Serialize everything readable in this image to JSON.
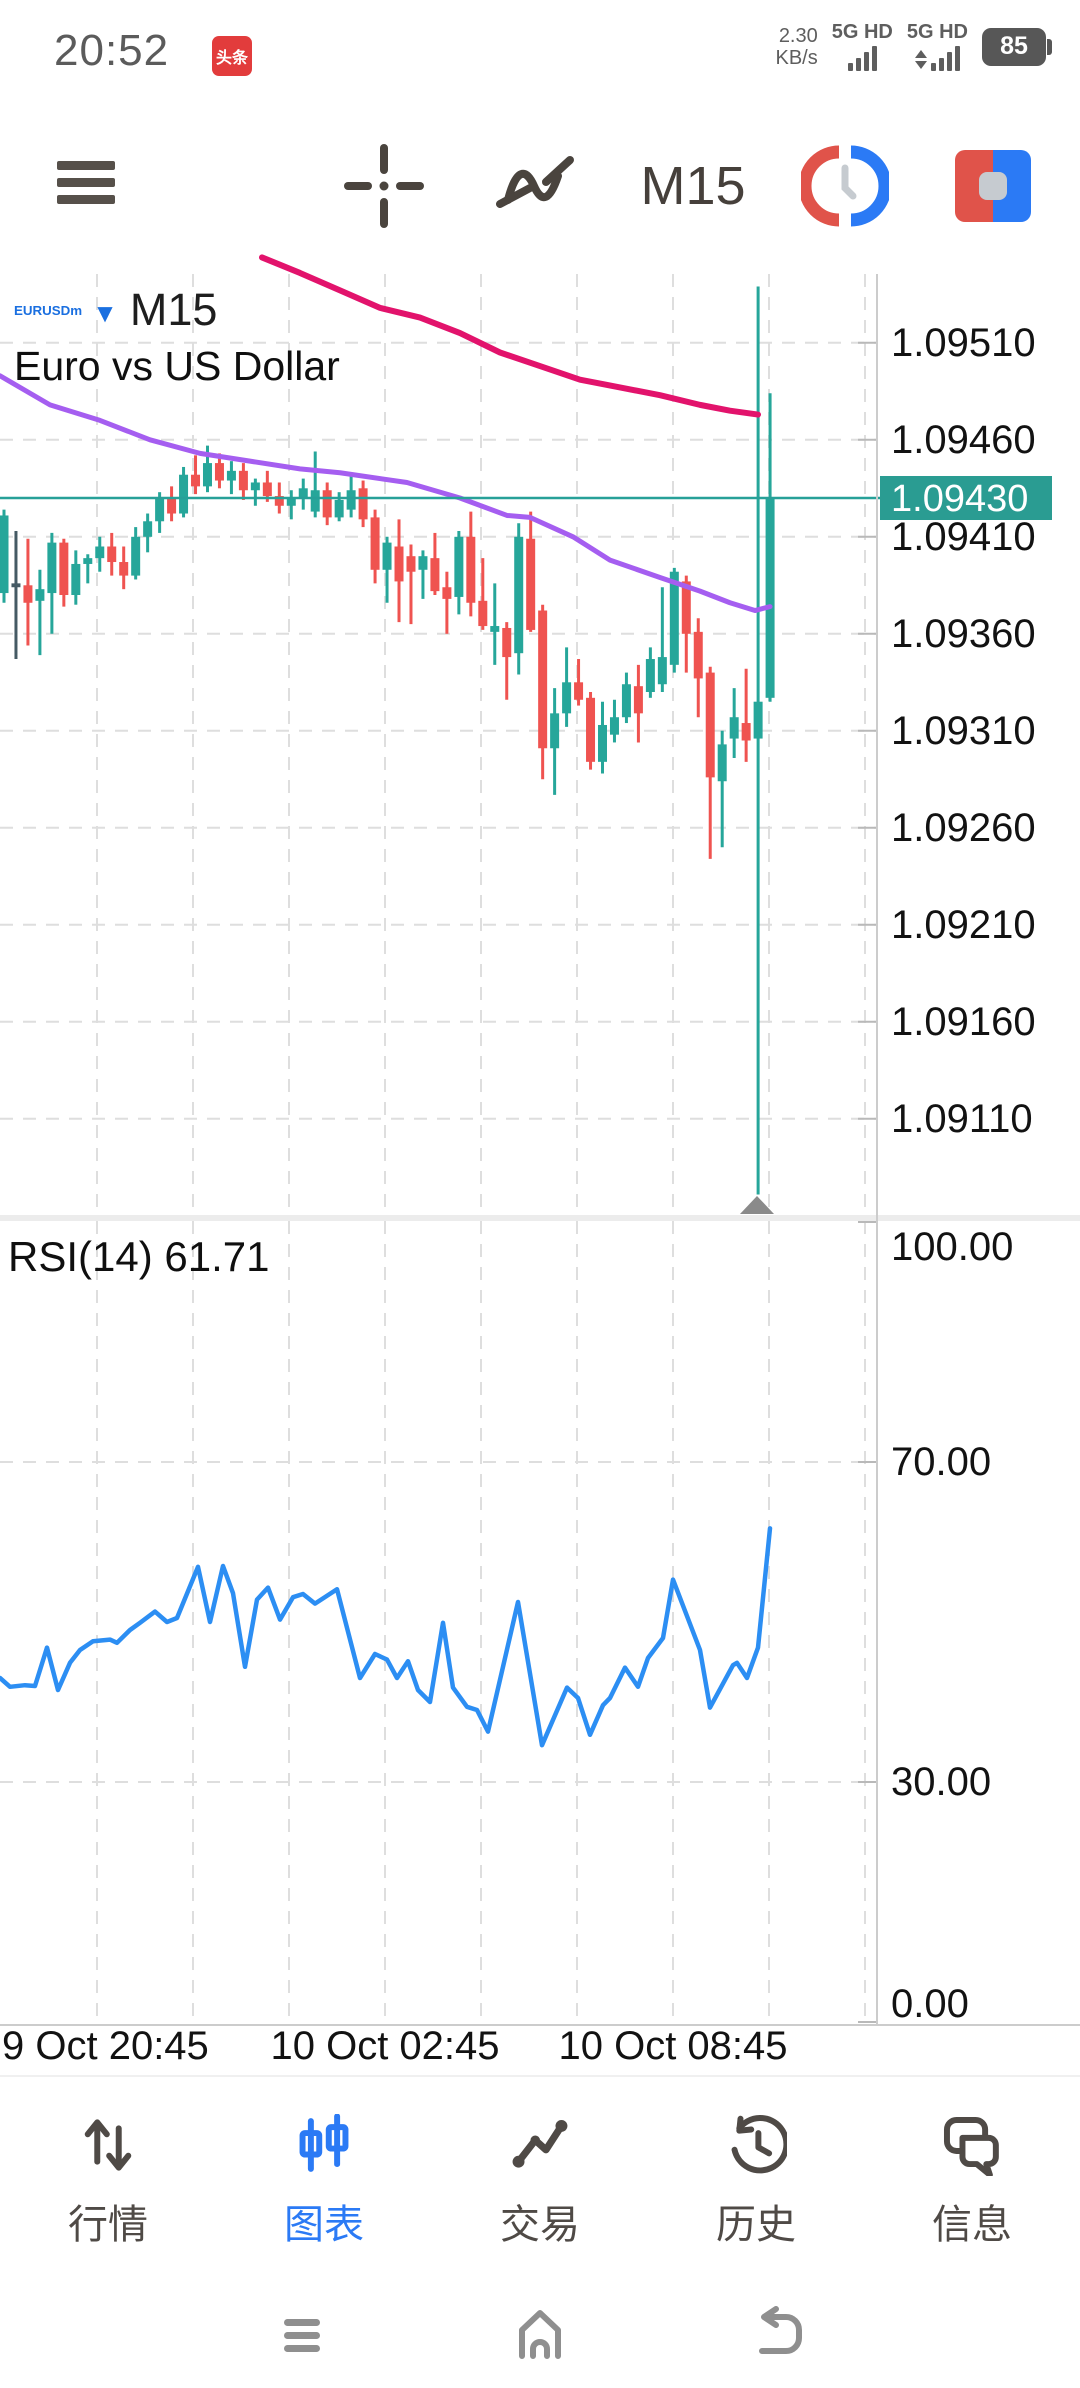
{
  "status_bar": {
    "time": "20:52",
    "app_badge": "头条",
    "net_speed": "2.30",
    "net_speed_unit": "KB/s",
    "sim1": "5G HD",
    "sim2": "5G HD",
    "battery_percent": "85"
  },
  "toolbar": {
    "timeframe": "M15"
  },
  "chart_header": {
    "symbol": "EURUSDm",
    "timeframe": "M15",
    "description": "Euro vs US Dollar"
  },
  "indicator_label": "RSI(14) 61.71",
  "colors": {
    "bull": "#26a69a",
    "bear": "#ef5350",
    "doji": "#455a64",
    "ma_fast_purple": "#a55ef0",
    "ma_slow_pink": "#e2136c",
    "price_line": "#27a098",
    "price_badge": "#2a9c92",
    "rsi_line": "#2c8ef3",
    "grid": "#dedede",
    "axis": "#cccccc",
    "text": "#121212",
    "active_tab": "#2b7af5",
    "divider": "#ececec",
    "marker": "#8a8a8a"
  },
  "chart_data": {
    "type": "candlestick",
    "symbol": "EURUSDm",
    "timeframe": "M15",
    "title": "Euro vs US Dollar",
    "current_price": 1.0943,
    "current_price_label": "1.09430",
    "y_axis": {
      "labels": [
        "1.09510",
        "1.09460",
        "1.09410",
        "1.09360",
        "1.09310",
        "1.09260",
        "1.09210",
        "1.09160",
        "1.09110"
      ],
      "values": [
        1.0951,
        1.0946,
        1.0941,
        1.0936,
        1.0931,
        1.0926,
        1.0921,
        1.0916,
        1.0911
      ]
    },
    "x_axis": {
      "labels": [
        "9 Oct 20:45",
        "10 Oct 02:45",
        "10 Oct 08:45"
      ]
    },
    "doji_index": 1,
    "candles": [
      [
        1.09381,
        1.09424,
        1.09376,
        1.09421
      ],
      [
        1.09386,
        1.09413,
        1.09347,
        1.09384
      ],
      [
        1.09385,
        1.09409,
        1.09354,
        1.09376
      ],
      [
        1.09377,
        1.09393,
        1.09349,
        1.09383
      ],
      [
        1.09381,
        1.09412,
        1.0936,
        1.09407
      ],
      [
        1.09407,
        1.09409,
        1.09374,
        1.0938
      ],
      [
        1.0938,
        1.09403,
        1.09375,
        1.09396
      ],
      [
        1.09396,
        1.09401,
        1.09386,
        1.09399
      ],
      [
        1.09399,
        1.0941,
        1.09392,
        1.09405
      ],
      [
        1.09405,
        1.09412,
        1.0939,
        1.09397
      ],
      [
        1.09397,
        1.09405,
        1.09383,
        1.0939
      ],
      [
        1.0939,
        1.09415,
        1.09388,
        1.0941
      ],
      [
        1.0941,
        1.09422,
        1.09402,
        1.09418
      ],
      [
        1.09418,
        1.09433,
        1.09412,
        1.0943
      ],
      [
        1.0943,
        1.09436,
        1.09418,
        1.09422
      ],
      [
        1.09422,
        1.09446,
        1.0942,
        1.09442
      ],
      [
        1.09442,
        1.09452,
        1.09432,
        1.09436
      ],
      [
        1.09436,
        1.09457,
        1.09433,
        1.09448
      ],
      [
        1.09448,
        1.09453,
        1.09435,
        1.09439
      ],
      [
        1.09439,
        1.09449,
        1.09432,
        1.09444
      ],
      [
        1.09444,
        1.09448,
        1.09429,
        1.09434
      ],
      [
        1.09434,
        1.0944,
        1.09426,
        1.09438
      ],
      [
        1.09438,
        1.09444,
        1.09428,
        1.09431
      ],
      [
        1.09431,
        1.09438,
        1.09422,
        1.09426
      ],
      [
        1.09426,
        1.09434,
        1.09419,
        1.0943
      ],
      [
        1.0943,
        1.0944,
        1.09424,
        1.09435
      ],
      [
        1.09423,
        1.09454,
        1.0942,
        1.09434
      ],
      [
        1.09434,
        1.09438,
        1.09416,
        1.0942
      ],
      [
        1.0942,
        1.09433,
        1.09418,
        1.09429
      ],
      [
        1.09424,
        1.09442,
        1.0942,
        1.09434
      ],
      [
        1.09435,
        1.09439,
        1.09415,
        1.09419
      ],
      [
        1.0942,
        1.09424,
        1.09386,
        1.09393
      ],
      [
        1.09393,
        1.0941,
        1.09376,
        1.09407
      ],
      [
        1.09405,
        1.09419,
        1.09366,
        1.09387
      ],
      [
        1.094,
        1.09406,
        1.09365,
        1.09392
      ],
      [
        1.09393,
        1.09403,
        1.09378,
        1.094
      ],
      [
        1.09399,
        1.09412,
        1.0938,
        1.09382
      ],
      [
        1.09384,
        1.09392,
        1.0936,
        1.09378
      ],
      [
        1.09379,
        1.09413,
        1.0937,
        1.0941
      ],
      [
        1.0941,
        1.09423,
        1.09369,
        1.09376
      ],
      [
        1.09377,
        1.09399,
        1.09362,
        1.09364
      ],
      [
        1.09361,
        1.09386,
        1.09344,
        1.09364
      ],
      [
        1.09363,
        1.09366,
        1.09326,
        1.09348
      ],
      [
        1.0935,
        1.09417,
        1.09339,
        1.0941
      ],
      [
        1.09409,
        1.09423,
        1.09361,
        1.09362
      ],
      [
        1.09372,
        1.09375,
        1.09285,
        1.09301
      ],
      [
        1.09301,
        1.09332,
        1.09277,
        1.09319
      ],
      [
        1.09319,
        1.09353,
        1.09312,
        1.09335
      ],
      [
        1.09335,
        1.09347,
        1.09323,
        1.09326
      ],
      [
        1.09327,
        1.0933,
        1.0929,
        1.09294
      ],
      [
        1.09294,
        1.09325,
        1.09288,
        1.09313
      ],
      [
        1.09308,
        1.09326,
        1.09304,
        1.09317
      ],
      [
        1.09317,
        1.0934,
        1.09314,
        1.09334
      ],
      [
        1.09333,
        1.09344,
        1.09304,
        1.09319
      ],
      [
        1.0933,
        1.09353,
        1.09327,
        1.09347
      ],
      [
        1.09334,
        1.09384,
        1.0933,
        1.09348
      ],
      [
        1.09344,
        1.09394,
        1.0934,
        1.09392
      ],
      [
        1.09387,
        1.0939,
        1.0934,
        1.0936
      ],
      [
        1.09361,
        1.09368,
        1.09317,
        1.09337
      ],
      [
        1.0934,
        1.09343,
        1.09244,
        1.09286
      ],
      [
        1.09284,
        1.0931,
        1.0925,
        1.09303
      ],
      [
        1.09306,
        1.09332,
        1.09296,
        1.09317
      ],
      [
        1.09314,
        1.09342,
        1.09294,
        1.09305
      ],
      [
        1.09306,
        1.09539,
        1.09071,
        1.09325
      ],
      [
        1.09327,
        1.09484,
        1.09325,
        1.0943
      ]
    ],
    "ma_slow": {
      "points": [
        [
          262,
          1.09554
        ],
        [
          300,
          1.09546
        ],
        [
          340,
          1.09537
        ],
        [
          380,
          1.09528
        ],
        [
          420,
          1.09523
        ],
        [
          460,
          1.09515
        ],
        [
          500,
          1.09505
        ],
        [
          540,
          1.09498
        ],
        [
          580,
          1.09491
        ],
        [
          620,
          1.09487
        ],
        [
          660,
          1.09483
        ],
        [
          700,
          1.09478
        ],
        [
          730,
          1.09475
        ],
        [
          758,
          1.09473
        ]
      ]
    },
    "ma_fast": {
      "points": [
        [
          0,
          1.09493
        ],
        [
          50,
          1.09478
        ],
        [
          100,
          1.0947
        ],
        [
          150,
          1.0946
        ],
        [
          200,
          1.09453
        ],
        [
          250,
          1.09449
        ],
        [
          300,
          1.09445
        ],
        [
          340,
          1.09443
        ],
        [
          407,
          1.09438
        ],
        [
          460,
          1.0943
        ],
        [
          507,
          1.09421
        ],
        [
          530,
          1.0942
        ],
        [
          573,
          1.0941
        ],
        [
          610,
          1.09398
        ],
        [
          660,
          1.09389
        ],
        [
          700,
          1.09382
        ],
        [
          730,
          1.09376
        ],
        [
          755,
          1.09372
        ],
        [
          770,
          1.09374
        ]
      ]
    },
    "rsi": {
      "name": "RSI",
      "period": 14,
      "current": 61.71,
      "overbought": 70,
      "oversold": 30,
      "scale_labels": [
        "100.00",
        "70.00",
        "30.00",
        "0.00"
      ],
      "scale_values": [
        100,
        70,
        30,
        0
      ],
      "points": [
        [
          0,
          43.0
        ],
        [
          10,
          41.9
        ],
        [
          25,
          42.1
        ],
        [
          35,
          42.0
        ],
        [
          47,
          46.8
        ],
        [
          58,
          41.5
        ],
        [
          70,
          44.9
        ],
        [
          80,
          46.5
        ],
        [
          93,
          47.6
        ],
        [
          110,
          47.8
        ],
        [
          117,
          47.4
        ],
        [
          130,
          49.0
        ],
        [
          140,
          49.9
        ],
        [
          155,
          51.3
        ],
        [
          167,
          50.0
        ],
        [
          177,
          50.5
        ],
        [
          198,
          56.9
        ],
        [
          210,
          50.0
        ],
        [
          223,
          57.0
        ],
        [
          233,
          53.6
        ],
        [
          245,
          44.4
        ],
        [
          257,
          52.8
        ],
        [
          268,
          54.3
        ],
        [
          280,
          50.3
        ],
        [
          293,
          53.1
        ],
        [
          303,
          53.5
        ],
        [
          315,
          52.3
        ],
        [
          337,
          54.1
        ],
        [
          360,
          43.0
        ],
        [
          375,
          46.0
        ],
        [
          387,
          45.3
        ],
        [
          397,
          43.0
        ],
        [
          408,
          45.1
        ],
        [
          418,
          41.5
        ],
        [
          430,
          40.0
        ],
        [
          443,
          49.9
        ],
        [
          453,
          41.8
        ],
        [
          467,
          39.4
        ],
        [
          477,
          39.0
        ],
        [
          488,
          36.3
        ],
        [
          518,
          52.5
        ],
        [
          542,
          34.6
        ],
        [
          567,
          41.8
        ],
        [
          578,
          40.5
        ],
        [
          590,
          35.9
        ],
        [
          603,
          39.6
        ],
        [
          610,
          40.5
        ],
        [
          625,
          44.3
        ],
        [
          638,
          41.9
        ],
        [
          648,
          45.5
        ],
        [
          663,
          48.0
        ],
        [
          673,
          55.3
        ],
        [
          700,
          46.5
        ],
        [
          710,
          39.3
        ],
        [
          733,
          44.6
        ],
        [
          737,
          44.9
        ],
        [
          747,
          43.0
        ],
        [
          758,
          46.8
        ],
        [
          770,
          61.71
        ]
      ]
    }
  },
  "bottom_nav": {
    "items": [
      {
        "label": "行情"
      },
      {
        "label": "图表"
      },
      {
        "label": "交易"
      },
      {
        "label": "历史"
      },
      {
        "label": "信息"
      }
    ]
  }
}
